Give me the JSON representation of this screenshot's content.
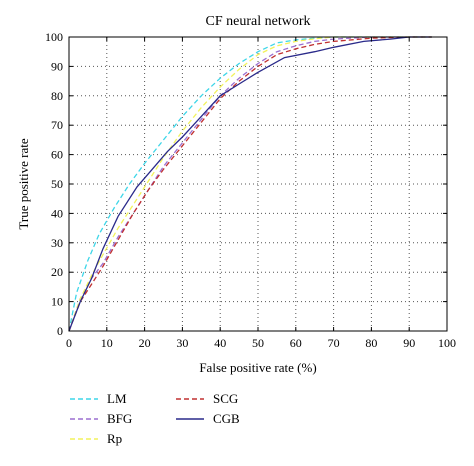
{
  "chart_data": {
    "type": "line",
    "title": "CF neural network",
    "xlabel": "False positive rate (%)",
    "ylabel": "True positive rate",
    "xlim": [
      0,
      100
    ],
    "ylim": [
      0,
      100
    ],
    "xticks": [
      0,
      10,
      20,
      30,
      40,
      50,
      60,
      70,
      80,
      90,
      100
    ],
    "yticks": [
      0,
      10,
      20,
      30,
      40,
      50,
      60,
      70,
      80,
      90,
      100
    ],
    "grid": true,
    "legend_position": "bottom",
    "series": [
      {
        "name": "LM",
        "color": "#3dd6e8",
        "dash": "dashed",
        "x": [
          0,
          2,
          5,
          8,
          12,
          16,
          20,
          25,
          30,
          35,
          40,
          45,
          50,
          55,
          60,
          65,
          70,
          80,
          90,
          96
        ],
        "y": [
          0,
          13,
          24,
          33,
          42,
          50,
          57,
          65,
          73,
          80,
          86,
          91,
          95,
          98,
          99,
          99.6,
          100,
          100,
          100,
          100
        ]
      },
      {
        "name": "BFG",
        "color": "#9b6fd0",
        "dash": "dashed",
        "x": [
          0,
          3,
          6,
          9,
          13,
          17,
          21,
          25,
          30,
          35,
          40,
          45,
          50,
          55,
          60,
          65,
          70,
          80,
          90,
          96
        ],
        "y": [
          0,
          11,
          18,
          23,
          32,
          40,
          48,
          56,
          64,
          72,
          80,
          86,
          91,
          95,
          97,
          98.5,
          99.3,
          100,
          100,
          100
        ]
      },
      {
        "name": "Rp",
        "color": "#f2f25c",
        "dash": "dashed",
        "x": [
          0,
          3,
          6,
          9,
          13,
          17,
          21,
          25,
          30,
          35,
          40,
          45,
          50,
          55,
          60,
          65,
          70,
          80,
          90,
          96
        ],
        "y": [
          0,
          11,
          19,
          26,
          35,
          43,
          51,
          59,
          68,
          76,
          83,
          89,
          94,
          97,
          98.5,
          99.4,
          100,
          100,
          100,
          100
        ]
      },
      {
        "name": "SCG",
        "color": "#c03030",
        "dash": "dashed",
        "x": [
          0,
          3,
          6,
          9,
          13,
          17,
          21,
          25,
          30,
          35,
          40,
          45,
          50,
          55,
          60,
          65,
          70,
          80,
          90,
          96
        ],
        "y": [
          0,
          10,
          16,
          22,
          31,
          40,
          48,
          55,
          63,
          71,
          79,
          85,
          90,
          94,
          96,
          97.5,
          98.5,
          99.6,
          100,
          100
        ]
      },
      {
        "name": "CGB",
        "color": "#2a2a8a",
        "dash": "solid",
        "x": [
          0,
          3,
          6,
          9,
          13,
          18,
          22,
          26,
          30,
          35,
          40,
          45,
          50,
          57,
          65,
          70,
          78,
          85,
          90,
          96
        ],
        "y": [
          0,
          10,
          18,
          28,
          39,
          49,
          55,
          61,
          66,
          73,
          80,
          84,
          88,
          93,
          95,
          96.5,
          98.5,
          99.3,
          100,
          100
        ]
      }
    ]
  }
}
